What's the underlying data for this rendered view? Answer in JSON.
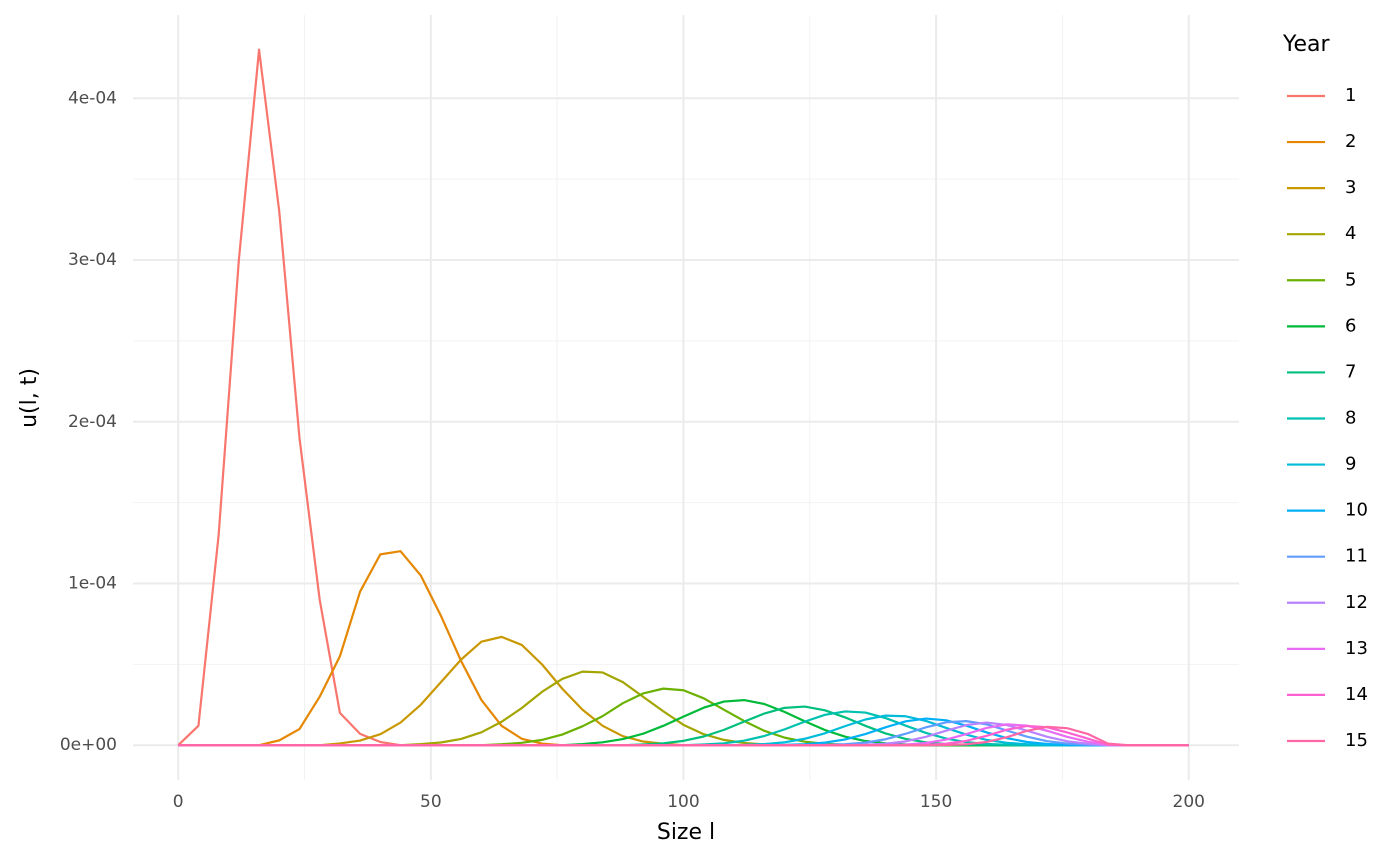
{
  "chart_data": {
    "type": "line",
    "x_label": "Size l",
    "y_label": "u(l, t)",
    "legend_title": "Year",
    "x": [
      0,
      4,
      8,
      12,
      16,
      20,
      24,
      28,
      32,
      36,
      40,
      44,
      48,
      52,
      56,
      60,
      64,
      68,
      72,
      76,
      80,
      84,
      88,
      92,
      96,
      100,
      104,
      108,
      112,
      116,
      120,
      124,
      128,
      132,
      136,
      140,
      144,
      148,
      152,
      156,
      160,
      164,
      168,
      172,
      176,
      180,
      184,
      188,
      192,
      196,
      200
    ],
    "xlim": [
      -8.95,
      209.95
    ],
    "xticks": [
      0,
      50,
      100,
      150,
      200
    ],
    "xminor": [
      25,
      75,
      125,
      175
    ],
    "ylim": [
      -2.15e-05,
      0.0004515
    ],
    "yticks": [
      {
        "value": 0,
        "label": "0e+00"
      },
      {
        "value": 0.0001,
        "label": "1e-04"
      },
      {
        "value": 0.0002,
        "label": "2e-04"
      },
      {
        "value": 0.0003,
        "label": "3e-04"
      },
      {
        "value": 0.0004,
        "label": "4e-04"
      }
    ],
    "yminor": [
      5e-05,
      0.00015,
      0.00025,
      0.00035
    ],
    "grid": true,
    "legend": "right",
    "series": [
      {
        "name": "1",
        "color": "#F8766D",
        "values": [
          0,
          1.2e-05,
          0.00013,
          0.0003,
          0.00043,
          0.00033,
          0.00019,
          9e-05,
          2e-05,
          7e-06,
          2e-06,
          0,
          0,
          0,
          0,
          0,
          0,
          0,
          0,
          0,
          0,
          0,
          0,
          0,
          0,
          0,
          0,
          0,
          0,
          0,
          0,
          0,
          0,
          0,
          0,
          0,
          0,
          0,
          0,
          0,
          0,
          0,
          0,
          0,
          0,
          0,
          0,
          0,
          0,
          0,
          0
        ]
      },
      {
        "name": "2",
        "color": "#E58700",
        "values": [
          0,
          0,
          0,
          0,
          0,
          3e-06,
          1e-05,
          3e-05,
          5.5e-05,
          9.5e-05,
          0.000118,
          0.00012,
          0.000105,
          8e-05,
          5.2e-05,
          2.8e-05,
          1.2e-05,
          4e-06,
          1e-06,
          0,
          0,
          0,
          0,
          0,
          0,
          0,
          0,
          0,
          0,
          0,
          0,
          0,
          0,
          0,
          0,
          0,
          0,
          0,
          0,
          0,
          0,
          0,
          0,
          0,
          0,
          0,
          0,
          0,
          0,
          0,
          0
        ]
      },
      {
        "name": "3",
        "color": "#C99800",
        "values": [
          0,
          0,
          0,
          0,
          0,
          0,
          0,
          0,
          1.1e-06,
          2.9e-06,
          6.8e-06,
          1.4e-05,
          2.5e-05,
          3.9e-05,
          5.3e-05,
          6.4e-05,
          6.7e-05,
          6.2e-05,
          5e-05,
          3.5e-05,
          2.2e-05,
          1.2e-05,
          5.6e-06,
          2.3e-06,
          9e-07,
          0,
          0,
          0,
          0,
          0,
          0,
          0,
          0,
          0,
          0,
          0,
          0,
          0,
          0,
          0,
          0,
          0,
          0,
          0,
          0,
          0,
          0,
          0,
          0,
          0,
          0
        ]
      },
      {
        "name": "4",
        "color": "#A3A500",
        "values": [
          0,
          0,
          0,
          0,
          0,
          0,
          0,
          0,
          0,
          0,
          0,
          0,
          7e-07,
          1.7e-06,
          3.9e-06,
          8e-06,
          1.45e-05,
          2.3e-05,
          3.3e-05,
          4.1e-05,
          4.55e-05,
          4.5e-05,
          3.9e-05,
          3e-05,
          2.1e-05,
          1.26e-05,
          6.8e-06,
          3.3e-06,
          1.4e-06,
          5e-07,
          0,
          0,
          0,
          0,
          0,
          0,
          0,
          0,
          0,
          0,
          0,
          0,
          0,
          0,
          0,
          0,
          0,
          0,
          0,
          0,
          0
        ]
      },
      {
        "name": "5",
        "color": "#6BB100",
        "values": [
          0,
          0,
          0,
          0,
          0,
          0,
          0,
          0,
          0,
          0,
          0,
          0,
          0,
          0,
          0,
          0,
          6e-07,
          1.5e-06,
          3.3e-06,
          6.6e-06,
          1.17e-05,
          1.8e-05,
          2.6e-05,
          3.2e-05,
          3.5e-05,
          3.4e-05,
          2.9e-05,
          2.2e-05,
          1.5e-05,
          8.9e-06,
          4.7e-06,
          2.2e-06,
          9e-07,
          3e-07,
          0,
          0,
          0,
          0,
          0,
          0,
          0,
          0,
          0,
          0,
          0,
          0,
          0,
          0,
          0,
          0,
          0
        ]
      },
      {
        "name": "6",
        "color": "#00BA38",
        "values": [
          0,
          0,
          0,
          0,
          0,
          0,
          0,
          0,
          0,
          0,
          0,
          0,
          0,
          0,
          0,
          0,
          0,
          0,
          0,
          0,
          7e-07,
          1.8e-06,
          3.8e-06,
          7.1e-06,
          1.2e-05,
          1.77e-05,
          2.32e-05,
          2.7e-05,
          2.79e-05,
          2.55e-05,
          2.06e-05,
          1.48e-05,
          9.4e-06,
          5.3e-06,
          2.6e-06,
          1.2e-06,
          5e-07,
          0,
          0,
          0,
          0,
          0,
          0,
          0,
          0,
          0,
          0,
          0,
          0,
          0,
          0
        ]
      },
      {
        "name": "7",
        "color": "#00BF7D",
        "values": [
          0,
          0,
          0,
          0,
          0,
          0,
          0,
          0,
          0,
          0,
          0,
          0,
          0,
          0,
          0,
          0,
          0,
          0,
          0,
          0,
          0,
          0,
          0,
          5e-07,
          1.2e-06,
          2.7e-06,
          5.4e-06,
          9.5e-06,
          1.46e-05,
          1.96e-05,
          2.31e-05,
          2.39e-05,
          2.16e-05,
          1.72e-05,
          1.2e-05,
          7.3e-06,
          3.9e-06,
          1.8e-06,
          7e-07,
          3e-07,
          0,
          0,
          0,
          0,
          0,
          0,
          0,
          0,
          0,
          0,
          0
        ]
      },
      {
        "name": "8",
        "color": "#00C0AF",
        "values": [
          0,
          0,
          0,
          0,
          0,
          0,
          0,
          0,
          0,
          0,
          0,
          0,
          0,
          0,
          0,
          0,
          0,
          0,
          0,
          0,
          0,
          0,
          0,
          0,
          0,
          0,
          5e-07,
          1.2e-06,
          2.8e-06,
          5.7e-06,
          9.8e-06,
          1.46e-05,
          1.88e-05,
          2.09e-05,
          2.02e-05,
          1.68e-05,
          1.21e-05,
          7.6e-06,
          4.1e-06,
          1.9e-06,
          8e-07,
          3e-07,
          0,
          0,
          0,
          0,
          0,
          0,
          0,
          0,
          0
        ]
      },
      {
        "name": "9",
        "color": "#00BCD8",
        "values": [
          0,
          0,
          0,
          0,
          0,
          0,
          0,
          0,
          0,
          0,
          0,
          0,
          0,
          0,
          0,
          0,
          0,
          0,
          0,
          0,
          0,
          0,
          0,
          0,
          0,
          0,
          0,
          0,
          2e-07,
          7e-07,
          1.8e-06,
          4e-06,
          7.4e-06,
          1.18e-05,
          1.59e-05,
          1.83e-05,
          1.79e-05,
          1.5e-05,
          1.07e-05,
          6.5e-06,
          3.3e-06,
          1.5e-06,
          6e-07,
          0,
          0,
          0,
          0,
          0,
          0,
          0,
          0
        ]
      },
      {
        "name": "10",
        "color": "#00B0F6",
        "values": [
          0,
          0,
          0,
          0,
          0,
          0,
          0,
          0,
          0,
          0,
          0,
          0,
          0,
          0,
          0,
          0,
          0,
          0,
          0,
          0,
          0,
          0,
          0,
          0,
          0,
          0,
          0,
          0,
          0,
          0,
          2e-07,
          6e-07,
          1.6e-06,
          3.6e-06,
          6.9e-06,
          1.11e-05,
          1.48e-05,
          1.65e-05,
          1.54e-05,
          1.21e-05,
          7.9e-06,
          4.4e-06,
          2e-06,
          8e-07,
          2e-07,
          0,
          0,
          0,
          0,
          0,
          0
        ]
      },
      {
        "name": "11",
        "color": "#619CFF",
        "values": [
          0,
          0,
          0,
          0,
          0,
          0,
          0,
          0,
          0,
          0,
          0,
          0,
          0,
          0,
          0,
          0,
          0,
          0,
          0,
          0,
          0,
          0,
          0,
          0,
          0,
          0,
          0,
          0,
          0,
          0,
          0,
          0,
          2e-07,
          6e-07,
          1.6e-06,
          3.7e-06,
          7.1e-06,
          1.11e-05,
          1.42e-05,
          1.49e-05,
          1.29e-05,
          9.1e-06,
          5.3e-06,
          2.5e-06,
          1e-06,
          3e-07,
          0,
          0,
          0,
          0,
          0
        ]
      },
      {
        "name": "12",
        "color": "#B983FF",
        "values": [
          0,
          0,
          0,
          0,
          0,
          0,
          0,
          0,
          0,
          0,
          0,
          0,
          0,
          0,
          0,
          0,
          0,
          0,
          0,
          0,
          0,
          0,
          0,
          0,
          0,
          0,
          0,
          0,
          0,
          0,
          0,
          0,
          0,
          0,
          3e-07,
          9e-07,
          2.4e-06,
          5.2e-06,
          9e-06,
          1.25e-05,
          1.4e-05,
          1.25e-05,
          9e-06,
          5.2e-06,
          2.4e-06,
          9e-07,
          0,
          0,
          0,
          0,
          0
        ]
      },
      {
        "name": "13",
        "color": "#E76BF3",
        "values": [
          0,
          0,
          0,
          0,
          0,
          0,
          0,
          0,
          0,
          0,
          0,
          0,
          0,
          0,
          0,
          0,
          0,
          0,
          0,
          0,
          0,
          0,
          0,
          0,
          0,
          0,
          0,
          0,
          0,
          0,
          0,
          0,
          0,
          0,
          0,
          1e-07,
          4e-07,
          1.4e-06,
          3.5e-06,
          6.9e-06,
          1.07e-05,
          1.29e-05,
          1.21e-05,
          8.9e-06,
          5.1e-06,
          2.2e-06,
          2e-07,
          0,
          0,
          0,
          0
        ]
      },
      {
        "name": "14",
        "color": "#FD61D1",
        "values": [
          0,
          0,
          0,
          0,
          0,
          0,
          0,
          0,
          0,
          0,
          0,
          0,
          0,
          0,
          0,
          0,
          0,
          0,
          0,
          0,
          0,
          0,
          0,
          0,
          0,
          0,
          0,
          0,
          0,
          0,
          0,
          0,
          0,
          0,
          0,
          0,
          0,
          2e-07,
          9e-07,
          2.7e-06,
          5.8e-06,
          9.6e-06,
          1.19e-05,
          1.11e-05,
          7.8e-06,
          4.1e-06,
          3e-07,
          0,
          0,
          0,
          0
        ]
      },
      {
        "name": "15",
        "color": "#FF67A4",
        "values": [
          0,
          0,
          0,
          0,
          0,
          0,
          0,
          0,
          0,
          0,
          0,
          0,
          0,
          0,
          0,
          0,
          0,
          0,
          0,
          0,
          0,
          0,
          0,
          0,
          0,
          0,
          0,
          0,
          0,
          0,
          0,
          0,
          0,
          0,
          0,
          0,
          0,
          0,
          1e-07,
          6e-07,
          2e-06,
          5e-06,
          8.9e-06,
          1.14e-05,
          1.05e-05,
          7e-06,
          1e-06,
          0,
          0,
          0,
          0
        ]
      }
    ]
  }
}
